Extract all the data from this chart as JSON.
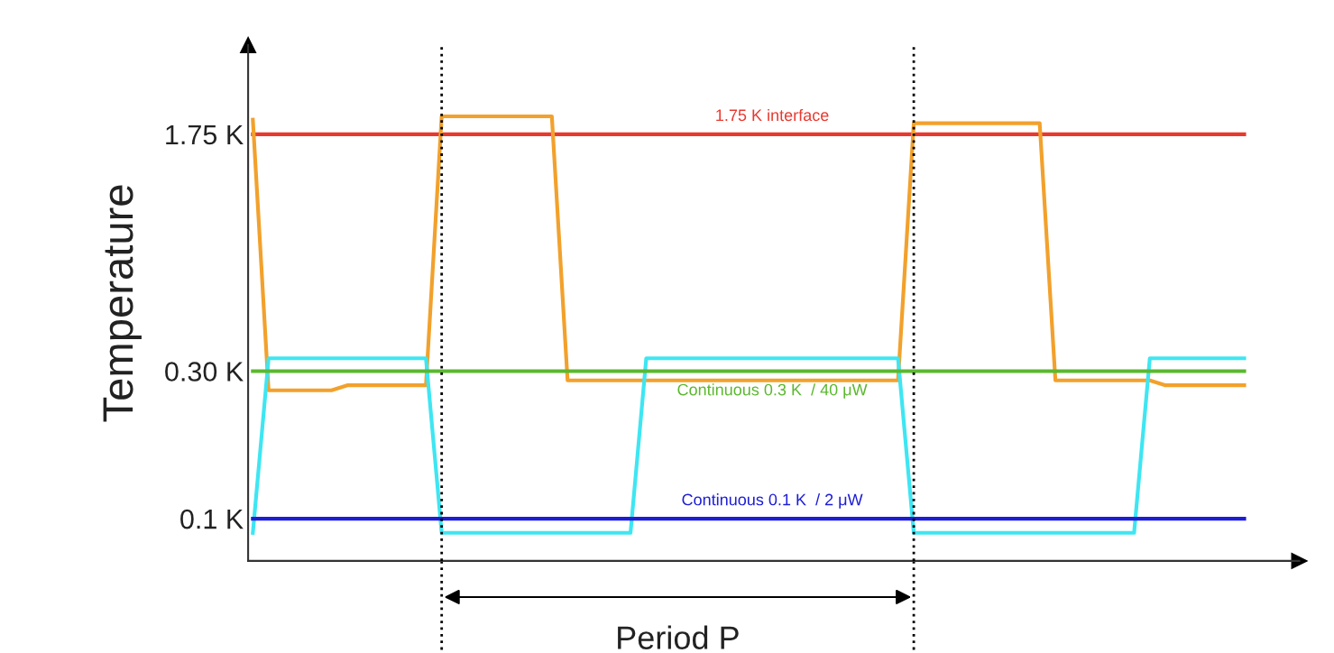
{
  "chart_data": {
    "type": "line",
    "ylabel": "Temperature",
    "log": "y",
    "ylim": [
      0.073,
      3.4
    ],
    "yticks": [
      {
        "value": 1.75,
        "label": "1.75 K"
      },
      {
        "value": 0.3,
        "label": "0.30 K"
      },
      {
        "value": 0.1,
        "label": "0.1 K"
      }
    ],
    "tick_labels": "y",
    "grid": false,
    "categories": [
      null,
      null,
      null,
      null,
      null,
      null,
      null,
      null,
      null,
      null,
      null,
      null,
      null,
      null,
      null,
      null,
      null,
      null,
      null,
      null,
      null,
      null,
      null,
      null,
      null,
      null,
      null,
      null,
      null,
      null,
      null,
      null,
      null,
      null,
      null,
      null,
      null,
      null,
      null,
      null,
      null,
      null,
      null,
      null,
      null,
      null,
      null,
      null,
      null,
      null,
      null,
      null,
      null,
      null,
      null,
      null,
      null,
      null,
      null,
      null,
      null,
      null,
      null,
      null
    ],
    "series": [
      {
        "name": "1.75 K interface",
        "color": "#e8392f",
        "values": [
          1.75,
          1.75,
          1.75,
          1.75,
          1.75,
          1.75,
          1.75,
          1.75,
          1.75,
          1.75,
          1.75,
          1.75,
          1.75,
          1.75,
          1.75,
          1.75,
          1.75,
          1.75,
          1.75,
          1.75,
          1.75,
          1.75,
          1.75,
          1.75,
          1.75,
          1.75,
          1.75,
          1.75,
          1.75,
          1.75,
          1.75,
          1.75,
          1.75,
          1.75,
          1.75,
          1.75,
          1.75,
          1.75,
          1.75,
          1.75,
          1.75,
          1.75,
          1.75,
          1.75,
          1.75,
          1.75,
          1.75,
          1.75,
          1.75,
          1.75,
          1.75,
          1.75,
          1.75,
          1.75,
          1.75,
          1.75,
          1.75,
          1.75,
          1.75,
          1.75,
          1.75,
          1.75,
          1.75,
          1.75
        ]
      },
      {
        "color": "#f2a12c",
        "values": [
          1.95,
          0.26,
          0.26,
          0.26,
          0.26,
          0.26,
          0.27,
          0.27,
          0.27,
          0.27,
          0.27,
          0.27,
          2.0,
          2.0,
          2.0,
          2.0,
          2.0,
          2.0,
          2.0,
          2.0,
          0.28,
          0.28,
          0.28,
          0.28,
          0.28,
          0.28,
          0.28,
          0.28,
          0.28,
          0.28,
          0.28,
          0.28,
          0.28,
          0.28,
          0.28,
          0.28,
          0.28,
          0.28,
          0.28,
          0.28,
          0.28,
          0.28,
          1.9,
          1.9,
          1.9,
          1.9,
          1.9,
          1.9,
          1.9,
          1.9,
          1.9,
          0.28,
          0.28,
          0.28,
          0.28,
          0.28,
          0.28,
          0.28,
          0.27,
          0.27,
          0.27,
          0.27,
          0.27,
          0.27
        ]
      },
      {
        "color": "#3ee6f2",
        "values": [
          0.09,
          0.33,
          0.33,
          0.33,
          0.33,
          0.33,
          0.33,
          0.33,
          0.33,
          0.33,
          0.33,
          0.33,
          0.09,
          0.09,
          0.09,
          0.09,
          0.09,
          0.09,
          0.09,
          0.09,
          0.09,
          0.09,
          0.09,
          0.09,
          0.09,
          0.33,
          0.33,
          0.33,
          0.33,
          0.33,
          0.33,
          0.33,
          0.33,
          0.33,
          0.33,
          0.33,
          0.33,
          0.33,
          0.33,
          0.33,
          0.33,
          0.33,
          0.09,
          0.09,
          0.09,
          0.09,
          0.09,
          0.09,
          0.09,
          0.09,
          0.09,
          0.09,
          0.09,
          0.09,
          0.09,
          0.09,
          0.09,
          0.33,
          0.33,
          0.33,
          0.33,
          0.33,
          0.33,
          0.33
        ]
      },
      {
        "name": "Continuous 0.3 K  / 40 μW",
        "color": "#5ab82e",
        "values": [
          0.3,
          0.3,
          0.3,
          0.3,
          0.3,
          0.3,
          0.3,
          0.3,
          0.3,
          0.3,
          0.3,
          0.3,
          0.3,
          0.3,
          0.3,
          0.3,
          0.3,
          0.3,
          0.3,
          0.3,
          0.3,
          0.3,
          0.3,
          0.3,
          0.3,
          0.3,
          0.3,
          0.3,
          0.3,
          0.3,
          0.3,
          0.3,
          0.3,
          0.3,
          0.3,
          0.3,
          0.3,
          0.3,
          0.3,
          0.3,
          0.3,
          0.3,
          0.3,
          0.3,
          0.3,
          0.3,
          0.3,
          0.3,
          0.3,
          0.3,
          0.3,
          0.3,
          0.3,
          0.3,
          0.3,
          0.3,
          0.3,
          0.3,
          0.3,
          0.3,
          0.3,
          0.3,
          0.3,
          0.3
        ]
      },
      {
        "name": "Continuous 0.1 K  / 2 μW",
        "color": "#1d1dd6",
        "values": [
          0.1,
          0.1,
          0.1,
          0.1,
          0.1,
          0.1,
          0.1,
          0.1,
          0.1,
          0.1,
          0.1,
          0.1,
          0.1,
          0.1,
          0.1,
          0.1,
          0.1,
          0.1,
          0.1,
          0.1,
          0.1,
          0.1,
          0.1,
          0.1,
          0.1,
          0.1,
          0.1,
          0.1,
          0.1,
          0.1,
          0.1,
          0.1,
          0.1,
          0.1,
          0.1,
          0.1,
          0.1,
          0.1,
          0.1,
          0.1,
          0.1,
          0.1,
          0.1,
          0.1,
          0.1,
          0.1,
          0.1,
          0.1,
          0.1,
          0.1,
          0.1,
          0.1,
          0.1,
          0.1,
          0.1,
          0.1,
          0.1,
          0.1,
          0.1,
          0.1,
          0.1,
          0.1,
          0.1,
          0.1
        ]
      }
    ],
    "annotations": [
      "Period P"
    ]
  }
}
